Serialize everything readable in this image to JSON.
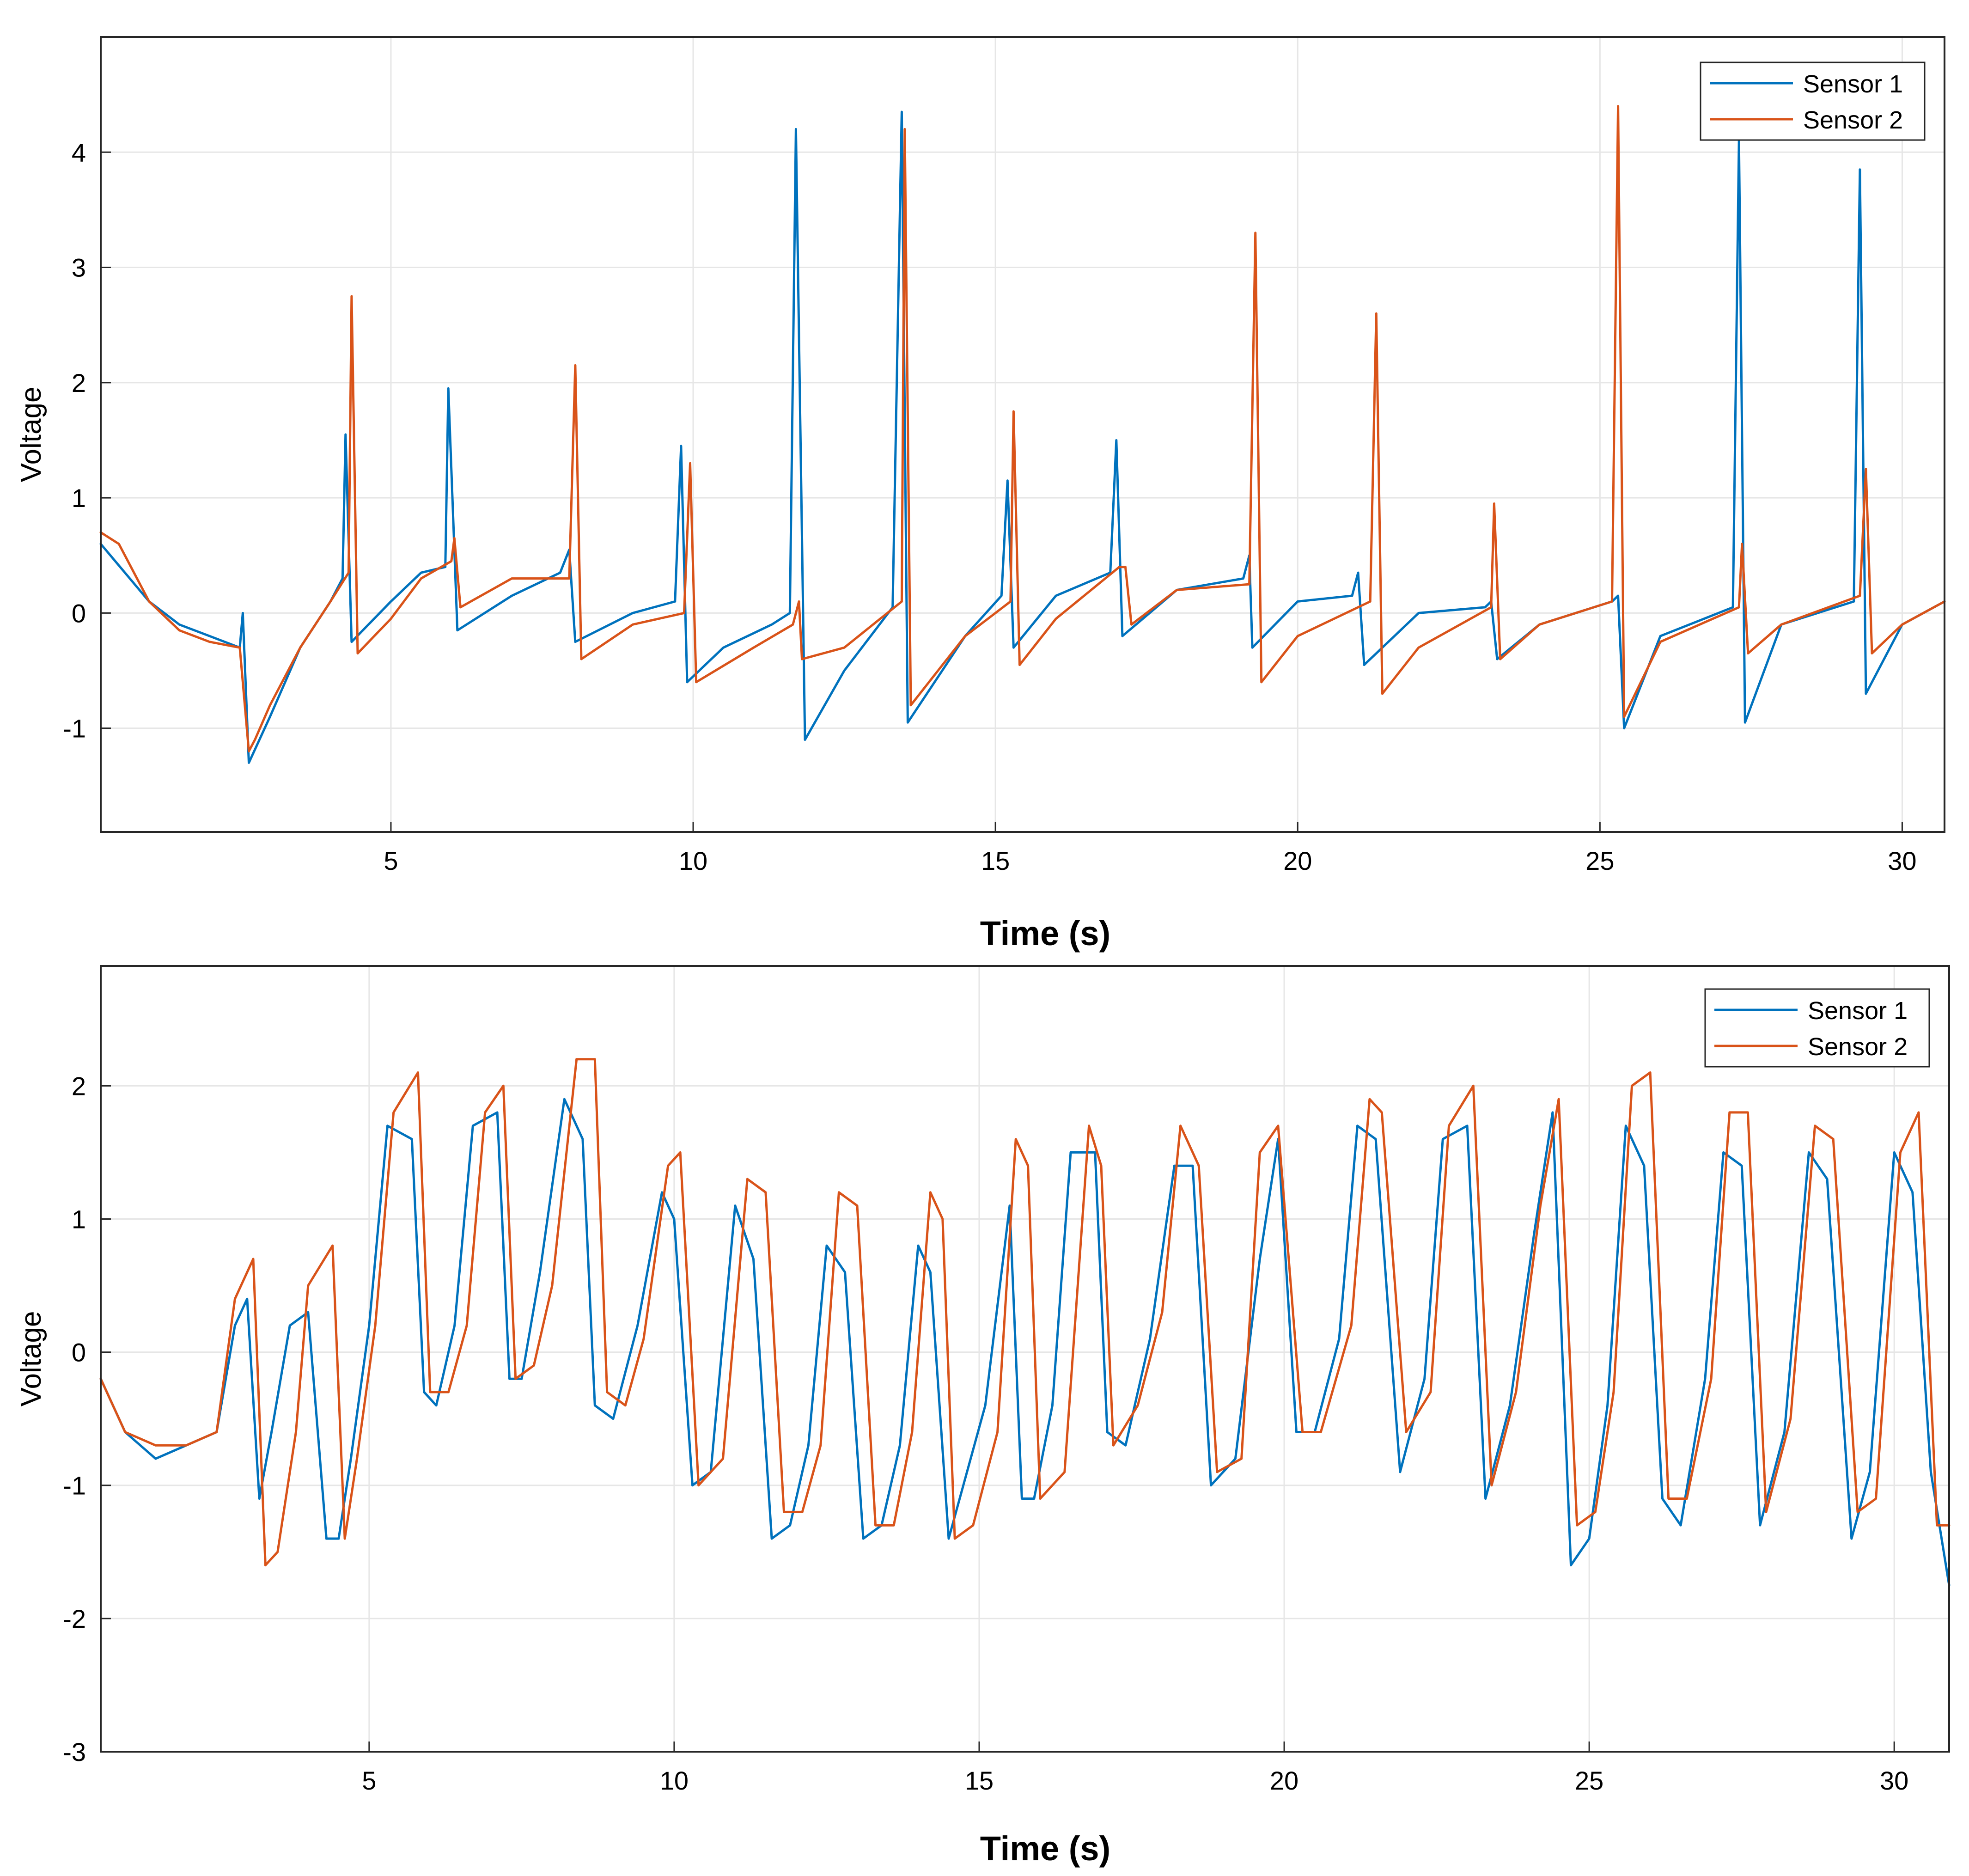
{
  "colors": {
    "sensor1": "#0072BD",
    "sensor2": "#D95319",
    "grid": "#e6e6e6",
    "axis": "#262626"
  },
  "chart_data": [
    {
      "type": "line",
      "title": "",
      "xlabel": "Time (s)",
      "ylabel": "Voltage",
      "xlim": [
        0.2,
        30.7
      ],
      "ylim": [
        -1.9,
        5.0
      ],
      "xticks": [
        5,
        10,
        15,
        20,
        25,
        30
      ],
      "xtick_labels": [
        "5",
        "10",
        "15",
        "20",
        "25",
        "30"
      ],
      "yticks": [
        -1,
        0,
        1,
        2,
        3,
        4
      ],
      "ytick_labels": [
        "-1",
        "0",
        "1",
        "2",
        "3",
        "4"
      ],
      "grid": true,
      "legend": "top-right",
      "series": [
        {
          "name": "Sensor 1",
          "color": "#0072BD",
          "x": [
            0.2,
            1.0,
            1.5,
            2.0,
            2.5,
            2.55,
            2.65,
            3.0,
            3.5,
            4.0,
            4.2,
            4.25,
            4.35,
            5.0,
            5.5,
            5.9,
            5.95,
            6.1,
            7.0,
            7.8,
            7.95,
            8.05,
            9.0,
            9.7,
            9.8,
            9.9,
            10.5,
            11.3,
            11.6,
            11.7,
            11.85,
            12.5,
            13.3,
            13.45,
            13.55,
            14.5,
            15.1,
            15.2,
            15.3,
            16.0,
            16.9,
            17.0,
            17.1,
            18.0,
            19.1,
            19.2,
            19.25,
            20.0,
            20.9,
            21.0,
            21.1,
            22.0,
            23.1,
            23.2,
            23.3,
            24.0,
            25.2,
            25.3,
            25.4,
            26.0,
            27.2,
            27.3,
            27.4,
            28.0,
            29.2,
            29.3,
            29.4,
            30.0,
            30.7
          ],
          "y": [
            0.6,
            0.1,
            -0.1,
            -0.2,
            -0.3,
            0.0,
            -1.3,
            -0.9,
            -0.3,
            0.1,
            0.3,
            1.55,
            -0.25,
            0.1,
            0.35,
            0.4,
            1.95,
            -0.15,
            0.15,
            0.35,
            0.55,
            -0.25,
            0.0,
            0.1,
            1.45,
            -0.6,
            -0.3,
            -0.1,
            0.0,
            4.2,
            -1.1,
            -0.5,
            0.05,
            4.35,
            -0.95,
            -0.2,
            0.15,
            1.15,
            -0.3,
            0.15,
            0.35,
            1.5,
            -0.2,
            0.2,
            0.3,
            0.5,
            -0.3,
            0.1,
            0.15,
            0.35,
            -0.45,
            0.0,
            0.05,
            0.1,
            -0.4,
            -0.1,
            0.1,
            0.15,
            -1.0,
            -0.2,
            0.05,
            4.1,
            -0.95,
            -0.1,
            0.1,
            3.85,
            -0.7,
            -0.1,
            0.1
          ]
        },
        {
          "name": "Sensor 2",
          "color": "#D95319",
          "x": [
            0.2,
            0.5,
            1.0,
            1.5,
            2.0,
            2.5,
            2.65,
            2.75,
            3.0,
            3.5,
            4.0,
            4.3,
            4.35,
            4.45,
            5.0,
            5.5,
            6.0,
            6.05,
            6.15,
            7.0,
            7.95,
            8.05,
            8.15,
            9.0,
            9.85,
            9.95,
            10.05,
            11.0,
            11.65,
            11.75,
            11.8,
            12.5,
            13.45,
            13.5,
            13.6,
            14.5,
            15.25,
            15.3,
            15.4,
            16.0,
            17.05,
            17.15,
            17.25,
            18.0,
            19.2,
            19.3,
            19.4,
            20.0,
            21.2,
            21.3,
            21.4,
            22.0,
            23.2,
            23.25,
            23.35,
            24.0,
            25.2,
            25.3,
            25.4,
            26.0,
            27.3,
            27.35,
            27.45,
            28.0,
            29.3,
            29.4,
            29.5,
            30.0,
            30.7
          ],
          "y": [
            0.7,
            0.6,
            0.1,
            -0.15,
            -0.25,
            -0.3,
            -1.2,
            -1.1,
            -0.8,
            -0.3,
            0.1,
            0.35,
            2.75,
            -0.35,
            -0.05,
            0.3,
            0.45,
            0.65,
            0.05,
            0.3,
            0.3,
            2.15,
            -0.4,
            -0.1,
            0.0,
            1.3,
            -0.6,
            -0.3,
            -0.1,
            0.1,
            -0.4,
            -0.3,
            0.1,
            4.2,
            -0.8,
            -0.2,
            0.1,
            1.75,
            -0.45,
            -0.05,
            0.4,
            0.4,
            -0.1,
            0.2,
            0.25,
            3.3,
            -0.6,
            -0.2,
            0.1,
            2.6,
            -0.7,
            -0.3,
            0.05,
            0.95,
            -0.4,
            -0.1,
            0.1,
            4.4,
            -0.9,
            -0.25,
            0.05,
            0.6,
            -0.35,
            -0.1,
            0.15,
            1.25,
            -0.35,
            -0.1,
            0.1
          ]
        }
      ]
    },
    {
      "type": "line",
      "title": "",
      "xlabel": "Time (s)",
      "ylabel": "Voltage",
      "xlim": [
        0.6,
        30.9
      ],
      "ylim": [
        -3.0,
        2.9
      ],
      "xticks": [
        5,
        10,
        15,
        20,
        25,
        30
      ],
      "xtick_labels": [
        "5",
        "10",
        "15",
        "20",
        "25",
        "30"
      ],
      "yticks": [
        -3,
        -2,
        -1,
        0,
        1,
        2
      ],
      "ytick_labels": [
        "-3",
        "-2",
        "-1",
        "0",
        "1",
        "2"
      ],
      "grid": true,
      "legend": "top-right",
      "series": [
        {
          "name": "Sensor 1",
          "color": "#0072BD",
          "x": [
            0.6,
            1.0,
            1.5,
            2.0,
            2.5,
            2.8,
            3.0,
            3.2,
            3.4,
            3.7,
            4.0,
            4.3,
            4.5,
            4.7,
            5.0,
            5.3,
            5.7,
            5.9,
            6.1,
            6.4,
            6.7,
            7.1,
            7.3,
            7.5,
            7.8,
            8.2,
            8.5,
            8.7,
            9.0,
            9.4,
            9.8,
            10.0,
            10.3,
            10.6,
            11.0,
            11.3,
            11.6,
            11.9,
            12.2,
            12.5,
            12.8,
            13.1,
            13.4,
            13.7,
            14.0,
            14.2,
            14.5,
            14.8,
            15.1,
            15.5,
            15.7,
            15.9,
            16.2,
            16.5,
            16.9,
            17.1,
            17.4,
            17.8,
            18.2,
            18.5,
            18.8,
            19.2,
            19.6,
            19.9,
            20.2,
            20.5,
            20.9,
            21.2,
            21.5,
            21.9,
            22.3,
            22.6,
            23.0,
            23.3,
            23.7,
            24.1,
            24.4,
            24.7,
            25.0,
            25.3,
            25.6,
            25.9,
            26.2,
            26.5,
            26.9,
            27.2,
            27.5,
            27.8,
            28.2,
            28.6,
            28.9,
            29.3,
            29.6,
            30.0,
            30.3,
            30.6,
            30.9
          ],
          "y": [
            -0.2,
            -0.6,
            -0.8,
            -0.7,
            -0.6,
            0.2,
            0.4,
            -1.1,
            -0.6,
            0.2,
            0.3,
            -1.4,
            -1.4,
            -0.8,
            0.2,
            1.7,
            1.6,
            -0.3,
            -0.4,
            0.2,
            1.7,
            1.8,
            -0.2,
            -0.2,
            0.6,
            1.9,
            1.6,
            -0.4,
            -0.5,
            0.2,
            1.2,
            1.0,
            -1.0,
            -0.9,
            1.1,
            0.7,
            -1.4,
            -1.3,
            -0.7,
            0.8,
            0.6,
            -1.4,
            -1.3,
            -0.7,
            0.8,
            0.6,
            -1.4,
            -0.9,
            -0.4,
            1.1,
            -1.1,
            -1.1,
            -0.4,
            1.5,
            1.5,
            -0.6,
            -0.7,
            0.1,
            1.4,
            1.4,
            -1.0,
            -0.8,
            0.7,
            1.6,
            -0.6,
            -0.6,
            0.1,
            1.7,
            1.6,
            -0.9,
            -0.2,
            1.6,
            1.7,
            -1.1,
            -0.4,
            0.9,
            1.8,
            -1.6,
            -1.4,
            -0.4,
            1.7,
            1.4,
            -1.1,
            -1.3,
            -0.2,
            1.5,
            1.4,
            -1.3,
            -0.6,
            1.5,
            1.3,
            -1.4,
            -0.9,
            1.5,
            1.2,
            -0.9,
            -1.75
          ]
        },
        {
          "name": "Sensor 2",
          "color": "#D95319",
          "x": [
            0.6,
            1.0,
            1.5,
            2.0,
            2.5,
            2.8,
            3.1,
            3.3,
            3.5,
            3.8,
            4.0,
            4.4,
            4.6,
            4.8,
            5.1,
            5.4,
            5.8,
            6.0,
            6.3,
            6.6,
            6.9,
            7.2,
            7.4,
            7.7,
            8.0,
            8.4,
            8.7,
            8.9,
            9.2,
            9.5,
            9.9,
            10.1,
            10.4,
            10.8,
            11.2,
            11.5,
            11.8,
            12.1,
            12.4,
            12.7,
            13.0,
            13.3,
            13.6,
            13.9,
            14.2,
            14.4,
            14.6,
            14.9,
            15.3,
            15.6,
            15.8,
            16.0,
            16.4,
            16.8,
            17.0,
            17.2,
            17.6,
            18.0,
            18.3,
            18.6,
            18.9,
            19.3,
            19.6,
            19.9,
            20.3,
            20.6,
            21.1,
            21.4,
            21.6,
            22.0,
            22.4,
            22.7,
            23.1,
            23.4,
            23.8,
            24.2,
            24.5,
            24.8,
            25.1,
            25.4,
            25.7,
            26.0,
            26.3,
            26.6,
            27.0,
            27.3,
            27.6,
            27.9,
            28.3,
            28.7,
            29.0,
            29.4,
            29.7,
            30.1,
            30.4,
            30.7,
            30.9
          ],
          "y": [
            -0.2,
            -0.6,
            -0.7,
            -0.7,
            -0.6,
            0.4,
            0.7,
            -1.6,
            -1.5,
            -0.6,
            0.5,
            0.8,
            -1.4,
            -0.8,
            0.2,
            1.8,
            2.1,
            -0.3,
            -0.3,
            0.2,
            1.8,
            2.0,
            -0.2,
            -0.1,
            0.5,
            2.2,
            2.2,
            -0.3,
            -0.4,
            0.1,
            1.4,
            1.5,
            -1.0,
            -0.8,
            1.3,
            1.2,
            -1.2,
            -1.2,
            -0.7,
            1.2,
            1.1,
            -1.3,
            -1.3,
            -0.6,
            1.2,
            1.0,
            -1.4,
            -1.3,
            -0.6,
            1.6,
            1.4,
            -1.1,
            -0.9,
            1.7,
            1.4,
            -0.7,
            -0.4,
            0.3,
            1.7,
            1.4,
            -0.9,
            -0.8,
            1.5,
            1.7,
            -0.6,
            -0.6,
            0.2,
            1.9,
            1.8,
            -0.6,
            -0.3,
            1.7,
            2.0,
            -1.0,
            -0.3,
            1.1,
            1.9,
            -1.3,
            -1.2,
            -0.3,
            2.0,
            2.1,
            -1.1,
            -1.1,
            -0.2,
            1.8,
            1.8,
            -1.2,
            -0.5,
            1.7,
            1.6,
            -1.2,
            -1.1,
            1.5,
            1.8,
            -1.3,
            -1.3
          ]
        }
      ]
    }
  ]
}
